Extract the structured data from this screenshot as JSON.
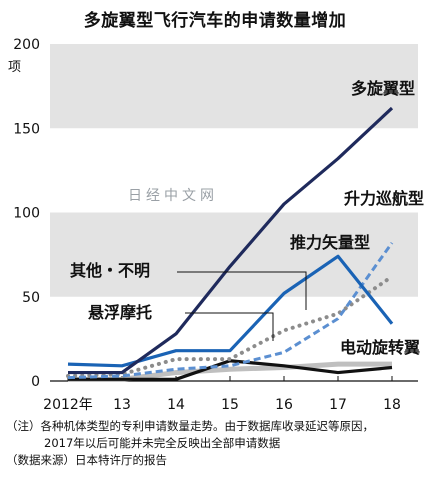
{
  "title": "多旋翼型飞行汽车的申请数量增加",
  "watermark": "日经中文网",
  "chart_data": {
    "type": "line",
    "x": [
      "2012年",
      "13",
      "14",
      "15",
      "16",
      "17",
      "18"
    ],
    "ylabel": "项",
    "ylim": [
      0,
      200
    ],
    "yticks": [
      0,
      50,
      100,
      150,
      200
    ],
    "grid": "alternating horizontal bands",
    "series": [
      {
        "name": "多旋翼型",
        "values": [
          5,
          5,
          28,
          68,
          105,
          132,
          162
        ],
        "color": "#1f2a5c",
        "style": "solid"
      },
      {
        "name": "升力巡航型",
        "values": [
          2,
          3,
          7,
          9,
          17,
          37,
          82
        ],
        "color": "#5b8fd1",
        "style": "dashed"
      },
      {
        "name": "推力矢量型",
        "values": [
          10,
          9,
          18,
          18,
          52,
          74,
          34
        ],
        "color": "#1a63b5",
        "style": "solid"
      },
      {
        "name": "其他・不明",
        "values": [
          3,
          4,
          13,
          13,
          30,
          40,
          62
        ],
        "color": "#8c8c8c",
        "style": "dotted"
      },
      {
        "name": "悬浮摩托",
        "values": [
          1,
          1,
          5,
          7,
          8,
          10,
          10
        ],
        "color": "#bfbfbf",
        "style": "solid-thick"
      },
      {
        "name": "电动旋转翼",
        "values": [
          1,
          1,
          1,
          12,
          9,
          5,
          8
        ],
        "color": "#111111",
        "style": "solid"
      }
    ]
  },
  "notes": {
    "line1": "（注）各种机体类型的专利申请数量走势。由于数据库收录延迟等原因，",
    "line2": "2017年以后可能并未完全反映出全部申请数据",
    "line3": "（数据来源）日本特许厅的报告"
  }
}
